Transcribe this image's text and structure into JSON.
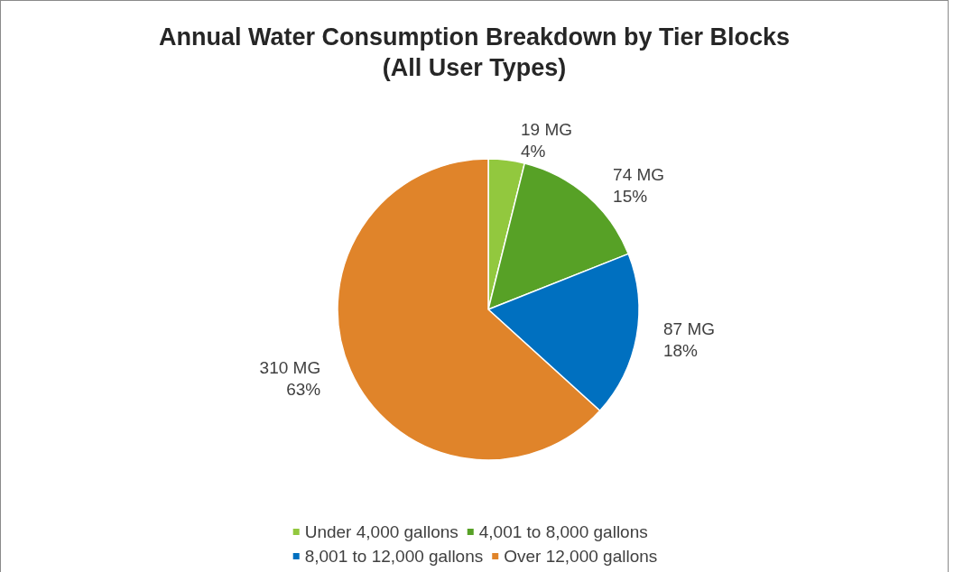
{
  "chart_data": {
    "type": "pie",
    "title": "Annual Water Consumption Breakdown by Tier Blocks\n(All User Types)",
    "categories": [
      "Under 4,000 gallons",
      "4,001 to 8,000 gallons",
      "8,001 to 12,000 gallons",
      "Over 12,000 gallons"
    ],
    "values": [
      19,
      74,
      87,
      310
    ],
    "value_labels": [
      "19 MG\n4%",
      "74 MG\n15%",
      "87 MG\n18%",
      "310 MG\n63%"
    ],
    "colors": [
      "#92c83e",
      "#57a126",
      "#0070c0",
      "#e0842a"
    ],
    "legend": "bottom"
  }
}
